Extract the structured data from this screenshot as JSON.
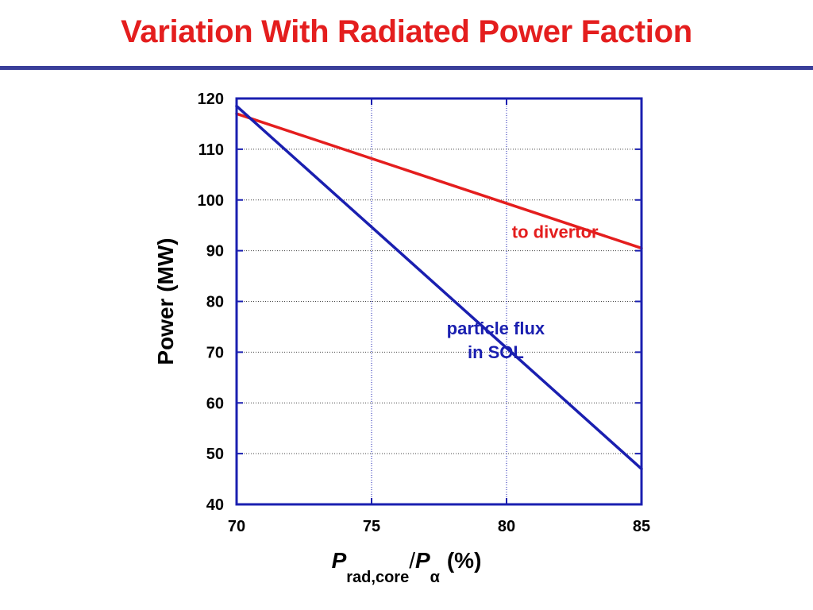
{
  "slide": {
    "title": "Variation With Radiated Power Faction"
  },
  "chart_data": {
    "type": "line",
    "title": "Variation With Radiated Power Faction",
    "ylabel": "Power (MW)",
    "xlabel_parts": {
      "p1": "P",
      "sub1": "rad,core",
      "slash": "/",
      "p2": "P",
      "sub2": "α",
      "unit": "(%)"
    },
    "xlim": [
      70,
      85
    ],
    "ylim": [
      40,
      120
    ],
    "xticks": [
      70,
      75,
      80,
      85
    ],
    "yticks": [
      40,
      50,
      60,
      70,
      80,
      90,
      100,
      110,
      120
    ],
    "grid": true,
    "series": [
      {
        "name": "to divertor",
        "color": "#e41e1e",
        "x": [
          70,
          85
        ],
        "y": [
          117,
          90.5
        ]
      },
      {
        "name": "particle flux in SOL",
        "color": "#1a1fb0",
        "x": [
          70,
          85
        ],
        "y": [
          118.5,
          47
        ]
      }
    ],
    "annotations": [
      {
        "lines": [
          "to divertor"
        ],
        "color": "#e41e1e",
        "x": 81.8,
        "y": 92.5
      },
      {
        "lines": [
          "particle flux",
          "in SOL"
        ],
        "color": "#1a1fb0",
        "x": 79.6,
        "y": 73.5
      }
    ]
  }
}
